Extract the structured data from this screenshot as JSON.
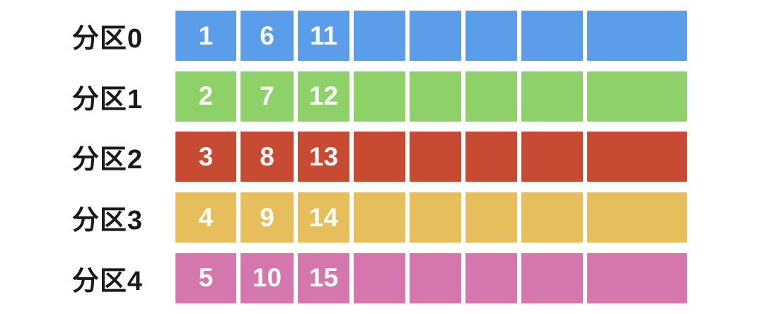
{
  "diagram": {
    "rows": [
      {
        "label": "分区0",
        "color": "#5b9de8",
        "cells": [
          "1",
          "6",
          "11",
          "",
          "",
          "",
          "",
          ""
        ]
      },
      {
        "label": "分区1",
        "color": "#8ed169",
        "cells": [
          "2",
          "7",
          "12",
          "",
          "",
          "",
          "",
          ""
        ]
      },
      {
        "label": "分区2",
        "color": "#c74a33",
        "cells": [
          "3",
          "8",
          "13",
          "",
          "",
          "",
          "",
          ""
        ]
      },
      {
        "label": "分区3",
        "color": "#e7be5c",
        "cells": [
          "4",
          "9",
          "14",
          "",
          "",
          "",
          "",
          ""
        ]
      },
      {
        "label": "分区4",
        "color": "#d377ad",
        "cells": [
          "5",
          "10",
          "15",
          "",
          "",
          "",
          "",
          ""
        ]
      }
    ],
    "cell_text_color": "#ffffff",
    "label_text_color": "#1a1a1a",
    "background": "#ffffff"
  }
}
